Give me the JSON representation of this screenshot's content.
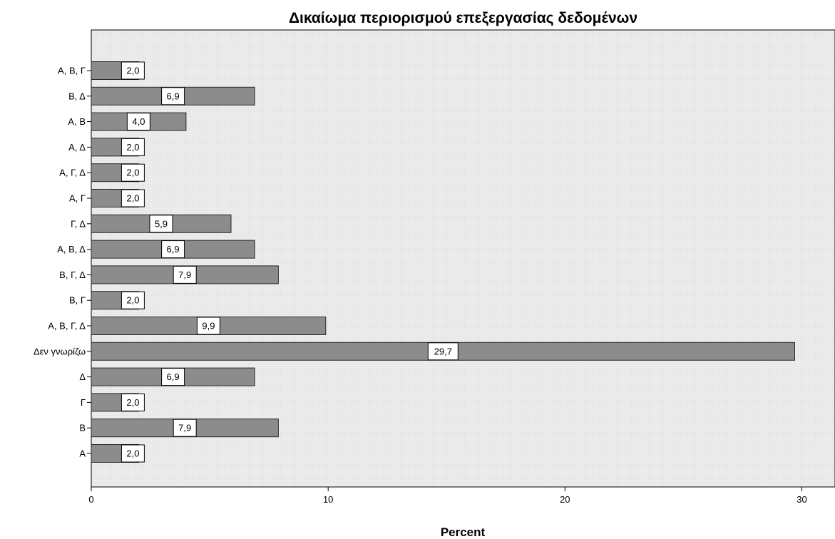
{
  "chart_data": {
    "type": "bar",
    "orientation": "horizontal",
    "title": "Δικαίωμα περιορισμού επεξεργασίας δεδομένων",
    "xlabel": "Percent",
    "ylabel": "",
    "xlim": [
      0,
      31.4
    ],
    "xticks": [
      0,
      10,
      20,
      30
    ],
    "grid": false,
    "categories": [
      "Α",
      "Β",
      "Γ",
      "Δ",
      "Δεν γνωρίζω",
      "Α, Β, Γ, Δ",
      "Β, Γ",
      "Β, Γ, Δ",
      "Α, Β, Δ",
      "Γ, Δ",
      "Α, Γ",
      "Α, Γ, Δ",
      "Α, Δ",
      "Α, Β",
      "Β, Δ",
      "Α, Β, Γ"
    ],
    "values": [
      2.0,
      7.9,
      2.0,
      6.9,
      29.7,
      9.9,
      2.0,
      7.9,
      6.9,
      5.9,
      2.0,
      2.0,
      2.0,
      4.0,
      6.9,
      2.0
    ],
    "value_labels": [
      "2,0",
      "7,9",
      "2,0",
      "6,9",
      "29,7",
      "9,9",
      "2,0",
      "7,9",
      "6,9",
      "5,9",
      "2,0",
      "2,0",
      "2,0",
      "4,0",
      "6,9",
      "2,0"
    ],
    "colors": {
      "bar_fill": "#8c8c8c",
      "bar_stroke": "#2a2a2a",
      "plot_background": "#ececec",
      "label_box": "#ffffff"
    }
  }
}
